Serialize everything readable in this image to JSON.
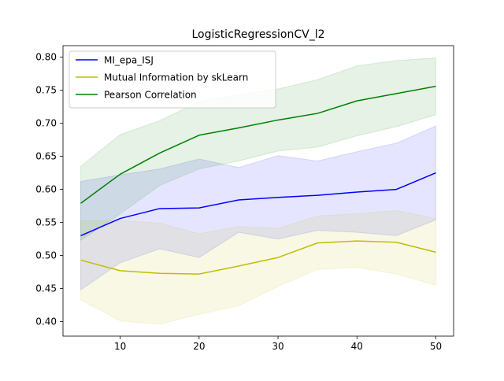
{
  "chart_data": {
    "type": "line",
    "title": "LogisticRegressionCV_l2",
    "xlabel": "",
    "ylabel": "",
    "xlim": [
      2.75,
      52.25
    ],
    "ylim": [
      0.378,
      0.8175
    ],
    "xticks": [
      10,
      20,
      30,
      40,
      50
    ],
    "yticks": [
      0.4,
      0.45,
      0.5,
      0.55,
      0.6,
      0.65,
      0.7,
      0.75,
      0.8
    ],
    "ytick_labels": [
      "0.40",
      "0.45",
      "0.50",
      "0.55",
      "0.60",
      "0.65",
      "0.70",
      "0.75",
      "0.80"
    ],
    "grid": false,
    "legend_position": "top-left",
    "x": [
      5,
      10,
      15,
      20,
      25,
      30,
      35,
      40,
      45,
      50
    ],
    "series": [
      {
        "name": "MI_epa_ISJ",
        "color": "#0000ff",
        "values": [
          0.53,
          0.556,
          0.571,
          0.572,
          0.584,
          0.588,
          0.591,
          0.596,
          0.6,
          0.625
        ],
        "band_upper": [
          0.612,
          0.622,
          0.631,
          0.646,
          0.633,
          0.651,
          0.643,
          0.657,
          0.67,
          0.696
        ],
        "band_lower": [
          0.448,
          0.489,
          0.51,
          0.497,
          0.535,
          0.525,
          0.538,
          0.535,
          0.53,
          0.554
        ]
      },
      {
        "name": "Mutual Information by skLearn",
        "color": "#bfbf00",
        "values": [
          0.493,
          0.477,
          0.473,
          0.472,
          0.484,
          0.497,
          0.519,
          0.522,
          0.52,
          0.505
        ],
        "band_upper": [
          0.553,
          0.553,
          0.549,
          0.533,
          0.544,
          0.541,
          0.56,
          0.563,
          0.568,
          0.556
        ],
        "band_lower": [
          0.433,
          0.401,
          0.396,
          0.411,
          0.424,
          0.453,
          0.479,
          0.482,
          0.472,
          0.455
        ]
      },
      {
        "name": "Pearson Correlation",
        "color": "#008000",
        "values": [
          0.579,
          0.623,
          0.655,
          0.682,
          0.693,
          0.705,
          0.715,
          0.734,
          0.745,
          0.756
        ],
        "band_upper": [
          0.635,
          0.683,
          0.704,
          0.733,
          0.743,
          0.752,
          0.766,
          0.787,
          0.795,
          0.799
        ],
        "band_lower": [
          0.523,
          0.563,
          0.606,
          0.631,
          0.643,
          0.658,
          0.664,
          0.681,
          0.695,
          0.713
        ]
      }
    ]
  }
}
